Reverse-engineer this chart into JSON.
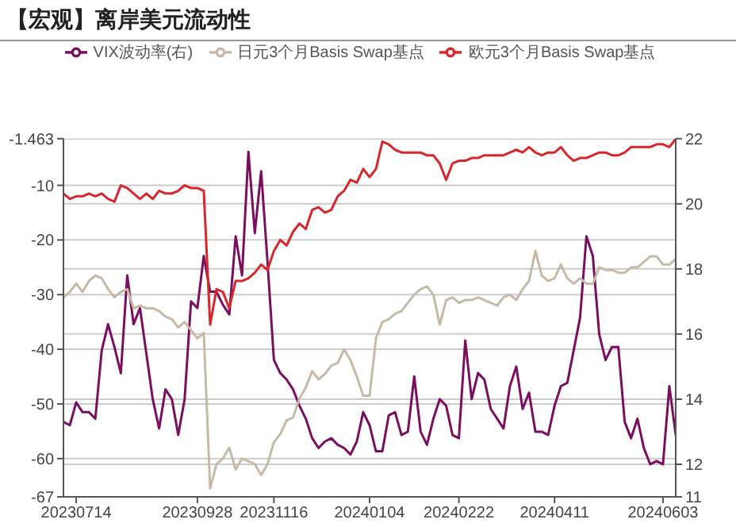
{
  "chart_data": {
    "type": "line",
    "title": "【宏观】离岸美元流动性",
    "categories": [
      null,
      null,
      "20230714",
      null,
      null,
      null,
      null,
      null,
      null,
      null,
      null,
      null,
      null,
      null,
      null,
      null,
      null,
      null,
      null,
      null,
      null,
      "20230928",
      null,
      null,
      null,
      null,
      null,
      null,
      null,
      null,
      null,
      null,
      null,
      "20231116",
      null,
      null,
      null,
      null,
      null,
      null,
      null,
      null,
      null,
      null,
      null,
      null,
      null,
      null,
      "20240104",
      null,
      null,
      null,
      null,
      null,
      null,
      null,
      null,
      null,
      null,
      null,
      null,
      null,
      "20240222",
      null,
      null,
      null,
      null,
      null,
      null,
      null,
      null,
      null,
      null,
      null,
      null,
      null,
      null,
      "20240411",
      null,
      null,
      null,
      null,
      null,
      null,
      null,
      null,
      null,
      null,
      null,
      null,
      null,
      null,
      null,
      null,
      "20240603",
      null,
      null
    ],
    "series": [
      {
        "name": "VIX波动率(右)",
        "color": "#7b0f5f",
        "axis": "y2",
        "values": [
          13.3,
          13.2,
          13.9,
          13.6,
          13.6,
          13.4,
          15.5,
          16.3,
          15.6,
          14.8,
          17.8,
          16.3,
          16.8,
          15.4,
          14.0,
          13.1,
          14.3,
          14.0,
          12.9,
          14.0,
          17.0,
          16.8,
          18.4,
          17.3,
          17.3,
          16.9,
          16.6,
          19.0,
          17.8,
          21.6,
          19.1,
          21.0,
          18.2,
          15.2,
          14.8,
          14.6,
          14.3,
          13.8,
          13.4,
          12.8,
          12.5,
          12.7,
          12.8,
          12.6,
          12.5,
          12.3,
          12.7,
          13.6,
          13.2,
          12.4,
          12.4,
          13.5,
          13.6,
          12.9,
          13.0,
          14.7,
          13.0,
          12.6,
          13.4,
          14.0,
          13.8,
          12.9,
          12.8,
          15.8,
          14.0,
          14.8,
          14.6,
          13.7,
          13.4,
          13.1,
          14.4,
          15.0,
          13.7,
          14.2,
          13.0,
          13.0,
          12.9,
          13.8,
          14.4,
          14.5,
          15.5,
          16.5,
          19.0,
          18.4,
          16.0,
          15.2,
          15.6,
          15.6,
          13.3,
          12.8,
          13.4,
          12.5,
          12.0,
          12.1,
          12.0,
          14.4,
          12.9
        ]
      },
      {
        "name": "日元3个月Basis Swap基点",
        "color": "#c8b9a6",
        "values": [
          -30.5,
          -29.5,
          -28,
          -29.5,
          -27.5,
          -26.5,
          -27,
          -29,
          -30.5,
          -29.5,
          -29,
          -32.5,
          -32,
          -32.5,
          -32.5,
          -33,
          -34,
          -34.5,
          -36,
          -35,
          -36.5,
          -38,
          -37,
          -65.5,
          -61,
          -60,
          -58,
          -62,
          -60,
          -60.5,
          -61,
          -63,
          -61,
          -57,
          -55.5,
          -53,
          -52.5,
          -49,
          -47,
          -44,
          -45.5,
          -44.5,
          -43,
          -42.5,
          -40,
          -42,
          -45,
          -48.5,
          -48.5,
          -38,
          -35,
          -34.5,
          -33.5,
          -33,
          -31.5,
          -30,
          -29,
          -28.5,
          -30,
          -35.5,
          -31,
          -30.5,
          -31.5,
          -31,
          -31,
          -30.5,
          -31,
          -31.5,
          -32,
          -30.5,
          -30,
          -31,
          -29,
          -27.5,
          -22,
          -26.5,
          -27.5,
          -27,
          -24.5,
          -27,
          -28,
          -27,
          -28,
          -28,
          -25,
          -25.5,
          -25.5,
          -26,
          -26,
          -25,
          -25,
          -24,
          -23,
          -23,
          -24.5,
          -24.5,
          -23.5
        ]
      },
      {
        "name": "欧元3个月Basis Swap基点",
        "color": "#d9262b",
        "values": [
          -11.5,
          -12.5,
          -12,
          -12,
          -11.5,
          -12,
          -11.5,
          -12.5,
          -13,
          -10,
          -10.5,
          -11.5,
          -12.5,
          -11.5,
          -12.5,
          -11,
          -11.5,
          -11.5,
          -11,
          -10,
          -10.5,
          -10.5,
          -11,
          -35.5,
          -29,
          -29.5,
          -32.5,
          -27.5,
          -27.5,
          -27,
          -26,
          -24.5,
          -25.5,
          -22,
          -20,
          -21,
          -18.5,
          -17,
          -18,
          -14.5,
          -14,
          -15,
          -14.5,
          -12,
          -11,
          -9,
          -9.5,
          -7,
          -8.5,
          -7,
          -2,
          -2.5,
          -3.5,
          -4,
          -4,
          -4,
          -4,
          -4.5,
          -4.5,
          -6,
          -9,
          -6,
          -5.5,
          -5.5,
          -5,
          -5,
          -4.5,
          -4.5,
          -4.5,
          -4.5,
          -4,
          -3.5,
          -4,
          -3,
          -4,
          -4.5,
          -4,
          -4,
          -3,
          -4.5,
          -5.5,
          -5,
          -5,
          -4.5,
          -4,
          -4,
          -4.5,
          -4.5,
          -4,
          -3,
          -3,
          -3,
          -3,
          -2.5,
          -2.5,
          -3,
          -1.5
        ]
      }
    ],
    "ylim": [
      -67,
      -1.463
    ],
    "yticks": [
      -67,
      -60,
      -50,
      -40,
      -30,
      -20,
      -10,
      -1.463
    ],
    "y2lim": [
      11,
      22
    ],
    "y2ticks": [
      11,
      12,
      14,
      16,
      18,
      20,
      22
    ],
    "grid": "y",
    "legend": "top",
    "line_style": "solid"
  }
}
